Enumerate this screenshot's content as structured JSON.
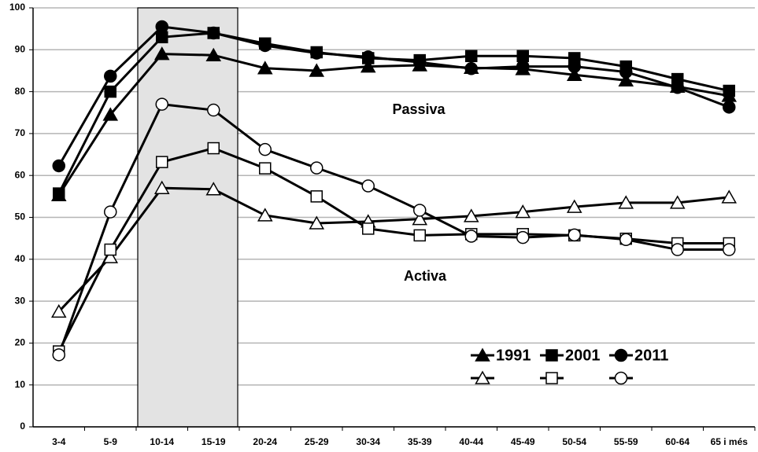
{
  "chart_data": {
    "type": "line",
    "categories": [
      "3-4",
      "5-9",
      "10-14",
      "15-19",
      "20-24",
      "25-29",
      "30-34",
      "35-39",
      "40-44",
      "45-49",
      "50-54",
      "55-59",
      "60-64",
      "65 i més"
    ],
    "series": [
      {
        "name": "1991",
        "color": "#000000",
        "marker": "triangle",
        "filled": true,
        "values": [
          55.3,
          74.5,
          89,
          88.7,
          85.6,
          85,
          86,
          86.3,
          85.7,
          85.4,
          84,
          82.7,
          81.2,
          79
        ]
      },
      {
        "name": "2001",
        "color": "#000000",
        "marker": "square",
        "filled": true,
        "values": [
          55.7,
          80,
          93,
          94,
          91.5,
          89.4,
          88,
          87.5,
          88.5,
          88.5,
          88,
          86,
          83,
          80.2
        ]
      },
      {
        "name": "2011",
        "color": "#000000",
        "marker": "circle",
        "filled": true,
        "values": [
          62.3,
          83.7,
          95.5,
          94,
          91,
          89.2,
          88.3,
          87,
          85.5,
          86,
          86,
          84.7,
          81,
          76.3
        ]
      },
      {
        "color": "#000000",
        "marker": "triangle",
        "filled": false,
        "values": [
          27.5,
          40.5,
          57,
          56.7,
          50.5,
          48.6,
          49,
          49.6,
          50.3,
          51.3,
          52.5,
          53.5,
          53.5,
          54.8
        ]
      },
      {
        "color": "#000000",
        "marker": "square",
        "filled": false,
        "values": [
          18,
          42.3,
          63.2,
          66.5,
          61.7,
          55,
          47.3,
          45.7,
          46,
          46,
          45.7,
          44.9,
          43.8,
          43.8
        ]
      },
      {
        "color": "#000000",
        "marker": "circle",
        "filled": false,
        "values": [
          17.2,
          51.3,
          77,
          75.6,
          66.2,
          61.8,
          57.5,
          51.7,
          45.5,
          45.2,
          45.8,
          44.7,
          42.3,
          42.3
        ]
      }
    ],
    "annotations": [
      "Passiva",
      "Activa"
    ],
    "ylim": [
      0,
      100
    ],
    "yticks": [
      0,
      10,
      20,
      30,
      40,
      50,
      60,
      70,
      80,
      90,
      100
    ],
    "grid": true,
    "legend": "lower right"
  }
}
